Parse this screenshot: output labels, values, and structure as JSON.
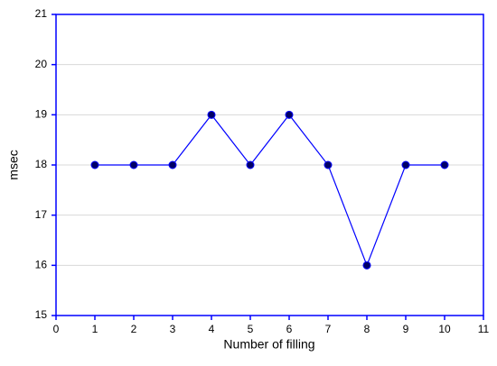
{
  "chart_data": {
    "type": "line",
    "xlabel": "Number of filling",
    "ylabel": "msec",
    "x": [
      1,
      2,
      3,
      4,
      5,
      6,
      7,
      8,
      9,
      10
    ],
    "series": [
      {
        "name": "msec",
        "color": "#0000ff",
        "marker_color": "#000066",
        "values": [
          18,
          18,
          18,
          19,
          18,
          19,
          18,
          16,
          18,
          18
        ]
      }
    ],
    "xlim": [
      0,
      11
    ],
    "xticks": [
      0,
      1,
      2,
      3,
      4,
      5,
      6,
      7,
      8,
      9,
      10,
      11
    ],
    "ylim": [
      15,
      21
    ],
    "yticks": [
      15,
      16,
      17,
      18,
      19,
      20,
      21
    ],
    "grid": true,
    "axis_color": "#0000ff"
  }
}
